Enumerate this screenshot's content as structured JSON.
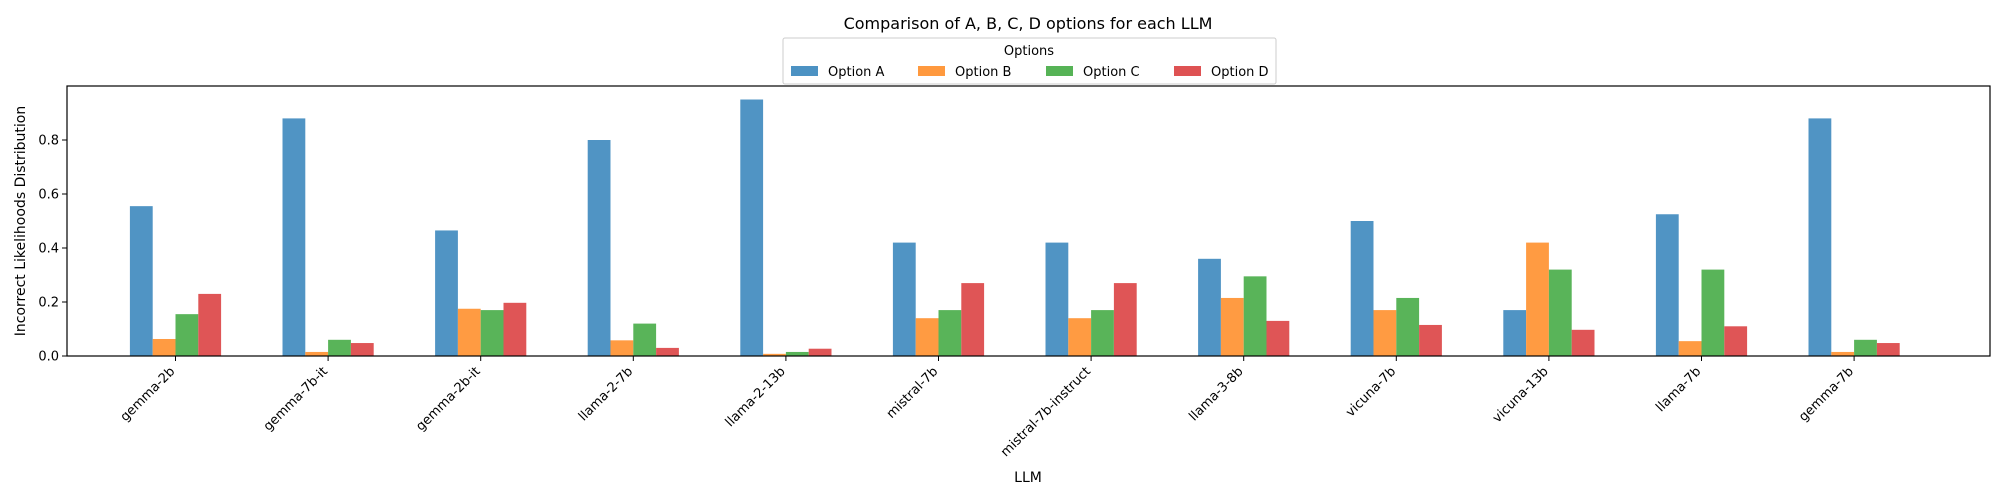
{
  "chart_data": {
    "type": "bar",
    "title": "Comparison of A, B, C, D options for each LLM",
    "xlabel": "LLM",
    "ylabel": "Incorrect Likelihoods Distribution",
    "ylim": [
      0,
      1.0
    ],
    "yticks": [
      "0.0",
      "0.2",
      "0.4",
      "0.6",
      "0.8"
    ],
    "grid": false,
    "legend_title": "Options",
    "legend_position": "top-center",
    "categories": [
      "gemma-2b",
      "gemma-7b-it",
      "gemma-2b-it",
      "llama-2-7b",
      "llama-2-13b",
      "mistral-7b",
      "mistral-7b-instruct",
      "llama-3-8b",
      "vicuna-7b",
      "vicuna-13b",
      "llama-7b",
      "gemma-7b"
    ],
    "series": [
      {
        "name": "Option A",
        "color": "#4c92c3",
        "values": [
          0.555,
          0.88,
          0.465,
          0.8,
          0.95,
          0.42,
          0.42,
          0.36,
          0.5,
          0.17,
          0.525,
          0.88
        ]
      },
      {
        "name": "Option B",
        "color": "#ff993e",
        "values": [
          0.063,
          0.015,
          0.175,
          0.058,
          0.008,
          0.14,
          0.14,
          0.215,
          0.17,
          0.42,
          0.055,
          0.015
        ]
      },
      {
        "name": "Option C",
        "color": "#56b356",
        "values": [
          0.155,
          0.06,
          0.17,
          0.12,
          0.015,
          0.17,
          0.17,
          0.295,
          0.215,
          0.32,
          0.32,
          0.06
        ]
      },
      {
        "name": "Option D",
        "color": "#de5253",
        "values": [
          0.23,
          0.048,
          0.197,
          0.03,
          0.027,
          0.27,
          0.27,
          0.13,
          0.115,
          0.097,
          0.11,
          0.048
        ]
      }
    ]
  }
}
